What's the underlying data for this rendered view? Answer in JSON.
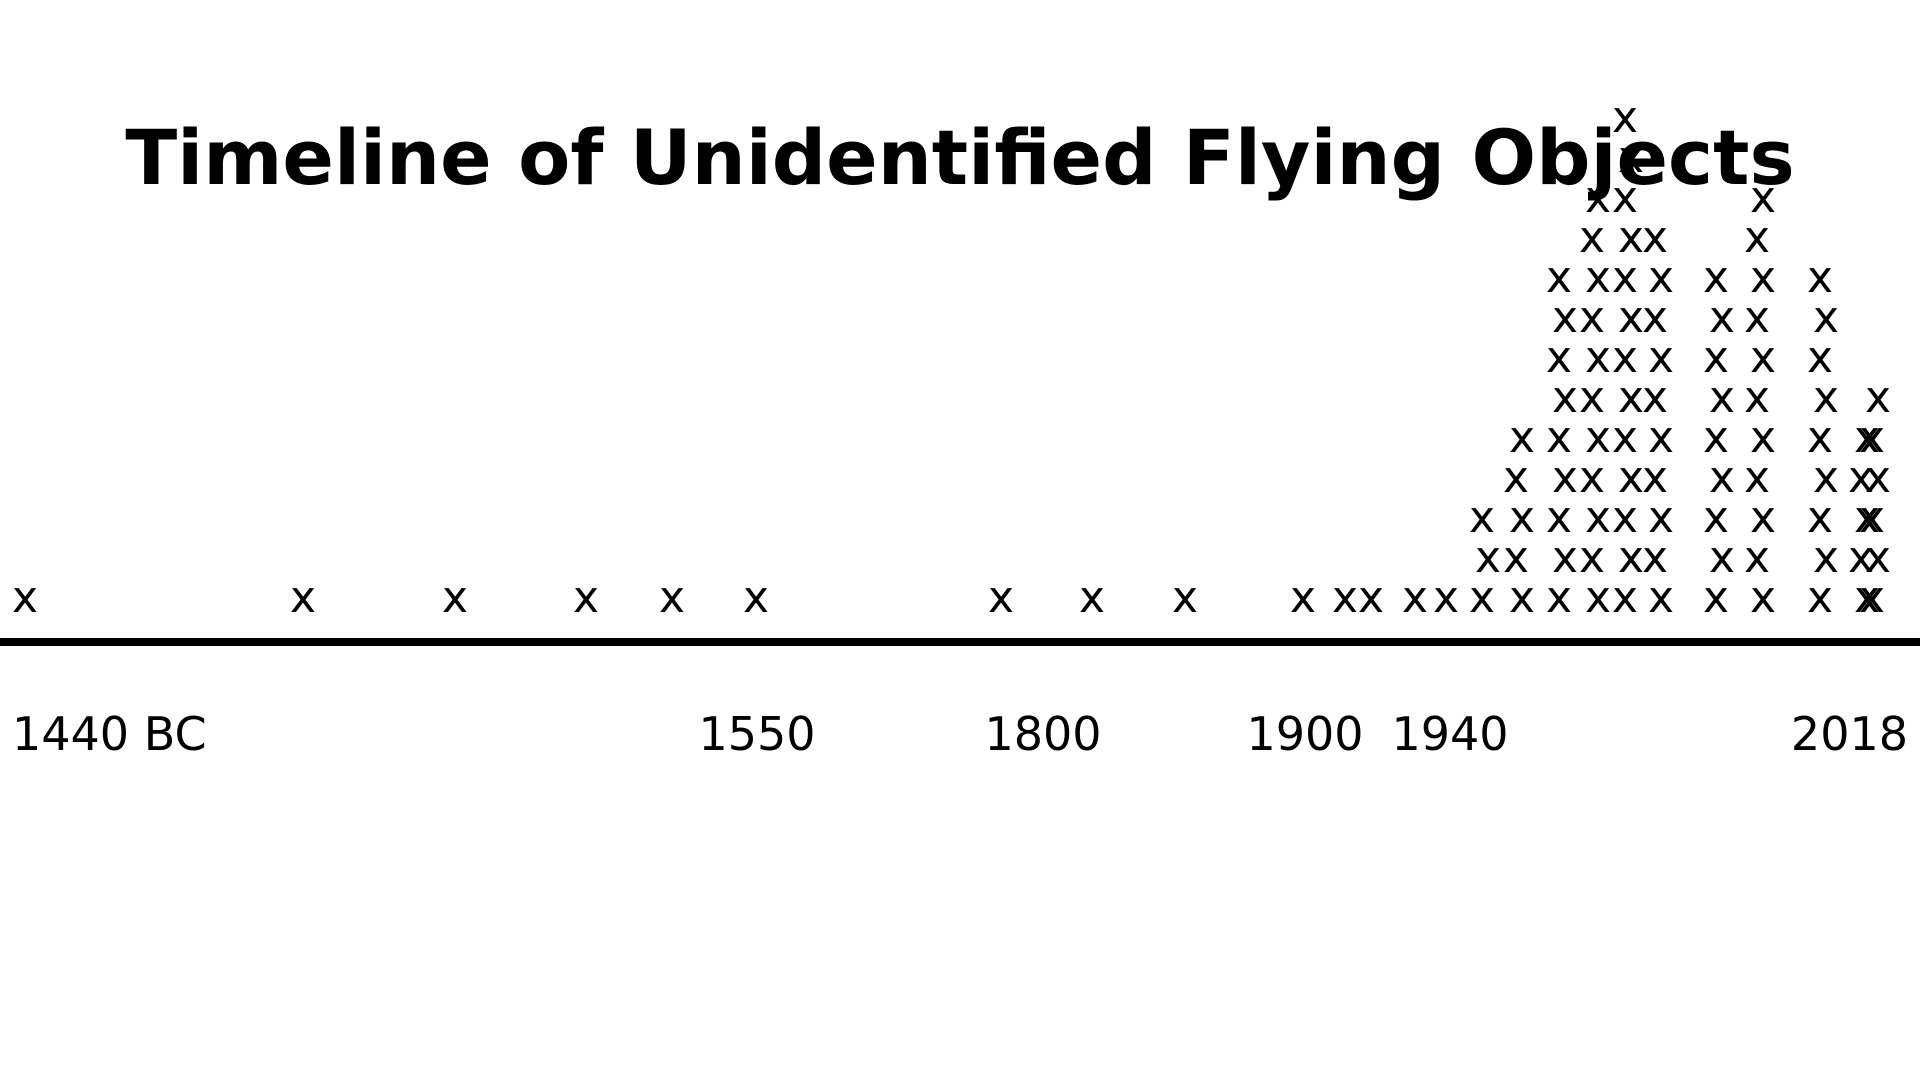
{
  "chart_data": {
    "type": "scatter",
    "title": "Timeline of Unidentified Flying Objects",
    "xlabel": "",
    "ylabel": "",
    "x_tick_labels": [
      "1440 BC",
      "1550",
      "1800",
      "1900",
      "1940",
      "2018"
    ],
    "marker_symbol": "x",
    "grid": false,
    "legend": "none",
    "column_counts": [
      1,
      1,
      1,
      1,
      1,
      1,
      1,
      1,
      1,
      1,
      1,
      1,
      1,
      1,
      3,
      5,
      9,
      11,
      13,
      10,
      9,
      11,
      9,
      5,
      6
    ]
  }
}
